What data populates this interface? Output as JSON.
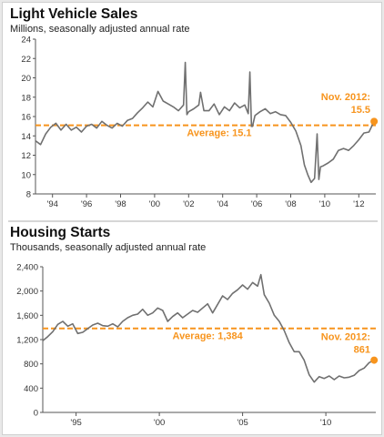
{
  "colors": {
    "accent": "#f7941d",
    "line": "#707070",
    "axis": "#555555"
  },
  "chart_data": [
    {
      "type": "line",
      "title": "Light Vehicle Sales",
      "subtitle": "Millions, seasonally adjusted annual rate",
      "xlim": [
        1993.0,
        2013.0
      ],
      "ylim": [
        8,
        24
      ],
      "yticks": [
        8,
        10,
        12,
        14,
        16,
        18,
        20,
        22,
        24
      ],
      "xticks": [
        {
          "value": 1994,
          "label": "'94"
        },
        {
          "value": 1996,
          "label": "'96"
        },
        {
          "value": 1998,
          "label": "'98"
        },
        {
          "value": 2000,
          "label": "'00"
        },
        {
          "value": 2002,
          "label": "'02"
        },
        {
          "value": 2004,
          "label": "'04"
        },
        {
          "value": 2006,
          "label": "'06"
        },
        {
          "value": 2008,
          "label": "'08"
        },
        {
          "value": 2010,
          "label": "'10"
        },
        {
          "value": 2012,
          "label": "'12"
        }
      ],
      "average": {
        "value": 15.1,
        "label": "Average: 15.1"
      },
      "latest": {
        "x": 2012.9,
        "y": 15.5,
        "label_line1": "Nov. 2012:",
        "label_line2": "15.5"
      },
      "series": [
        {
          "x": [
            1993.0,
            1993.3,
            1993.6,
            1993.9,
            1994.2,
            1994.5,
            1994.8,
            1995.1,
            1995.4,
            1995.7,
            1996.0,
            1996.3,
            1996.6,
            1996.9,
            1997.2,
            1997.5,
            1997.8,
            1998.1,
            1998.4,
            1998.7,
            1999.0,
            1999.3,
            1999.6,
            1999.9,
            2000.2,
            2000.5,
            2000.8,
            2001.1,
            2001.4,
            2001.7,
            2001.8,
            2001.9,
            2002.0,
            2002.3,
            2002.6,
            2002.7,
            2002.9,
            2003.2,
            2003.5,
            2003.8,
            2004.1,
            2004.4,
            2004.7,
            2005.0,
            2005.3,
            2005.5,
            2005.6,
            2005.7,
            2005.9,
            2006.2,
            2006.5,
            2006.8,
            2007.1,
            2007.4,
            2007.7,
            2008.0,
            2008.3,
            2008.6,
            2008.8,
            2009.0,
            2009.2,
            2009.4,
            2009.55,
            2009.65,
            2009.75,
            2009.9,
            2010.2,
            2010.5,
            2010.8,
            2011.1,
            2011.4,
            2011.7,
            2012.0,
            2012.3,
            2012.6,
            2012.9
          ],
          "y": [
            13.5,
            13.1,
            14.2,
            14.9,
            15.3,
            14.6,
            15.2,
            14.6,
            14.9,
            14.4,
            15.0,
            15.2,
            14.8,
            15.5,
            15.1,
            14.8,
            15.3,
            15.0,
            15.6,
            15.8,
            16.4,
            16.9,
            17.5,
            17.0,
            18.6,
            17.6,
            17.3,
            17.0,
            16.6,
            17.2,
            21.6,
            16.2,
            16.5,
            16.8,
            17.2,
            18.5,
            16.6,
            16.6,
            17.3,
            16.2,
            17.0,
            16.6,
            17.4,
            16.9,
            17.2,
            16.3,
            20.6,
            14.6,
            16.1,
            16.5,
            16.8,
            16.3,
            16.5,
            16.2,
            16.1,
            15.4,
            14.5,
            13.0,
            11.0,
            10.0,
            9.2,
            9.6,
            14.2,
            9.5,
            10.8,
            10.9,
            11.2,
            11.6,
            12.5,
            12.7,
            12.5,
            13.0,
            13.6,
            14.3,
            14.4,
            15.5
          ]
        }
      ]
    },
    {
      "type": "line",
      "title": "Housing Starts",
      "subtitle": "Thousands, seasonally adjusted annual rate",
      "xlim": [
        1993.0,
        2013.0
      ],
      "ylim": [
        0,
        2400
      ],
      "yticks": [
        0,
        400,
        800,
        1200,
        1600,
        2000,
        2400
      ],
      "ytick_labels": [
        "0",
        "400",
        "800",
        "1,200",
        "1,600",
        "2,000",
        "2,400"
      ],
      "xticks": [
        {
          "value": 1995,
          "label": "'95"
        },
        {
          "value": 2000,
          "label": "'00"
        },
        {
          "value": 2005,
          "label": "'05"
        },
        {
          "value": 2010,
          "label": "'10"
        }
      ],
      "average": {
        "value": 1384,
        "label": "Average: 1,384"
      },
      "latest": {
        "x": 2012.9,
        "y": 861,
        "label_line1": "Nov. 2012:",
        "label_line2": "861"
      },
      "series": [
        {
          "x": [
            1993.0,
            1993.3,
            1993.6,
            1993.9,
            1994.2,
            1994.5,
            1994.8,
            1995.1,
            1995.4,
            1995.7,
            1996.0,
            1996.3,
            1996.6,
            1996.9,
            1997.2,
            1997.5,
            1997.8,
            1998.1,
            1998.4,
            1998.7,
            1999.0,
            1999.3,
            1999.6,
            1999.9,
            2000.2,
            2000.5,
            2000.8,
            2001.1,
            2001.4,
            2001.7,
            2002.0,
            2002.3,
            2002.6,
            2002.9,
            2003.2,
            2003.5,
            2003.8,
            2004.1,
            2004.4,
            2004.7,
            2005.0,
            2005.3,
            2005.6,
            2005.9,
            2006.1,
            2006.3,
            2006.6,
            2006.9,
            2007.2,
            2007.5,
            2007.8,
            2008.1,
            2008.4,
            2008.7,
            2009.0,
            2009.3,
            2009.6,
            2009.9,
            2010.2,
            2010.5,
            2010.8,
            2011.1,
            2011.4,
            2011.7,
            2012.0,
            2012.3,
            2012.6,
            2012.9
          ],
          "y": [
            1180,
            1250,
            1330,
            1450,
            1500,
            1420,
            1460,
            1300,
            1320,
            1380,
            1440,
            1470,
            1430,
            1420,
            1460,
            1410,
            1500,
            1560,
            1600,
            1620,
            1700,
            1600,
            1640,
            1720,
            1680,
            1500,
            1580,
            1640,
            1560,
            1620,
            1680,
            1650,
            1720,
            1790,
            1640,
            1780,
            1920,
            1860,
            1960,
            2020,
            2100,
            2030,
            2140,
            2080,
            2270,
            1940,
            1800,
            1600,
            1500,
            1350,
            1150,
            1000,
            1000,
            860,
            620,
            500,
            590,
            560,
            600,
            540,
            600,
            570,
            580,
            610,
            690,
            730,
            820,
            861
          ]
        }
      ]
    }
  ]
}
